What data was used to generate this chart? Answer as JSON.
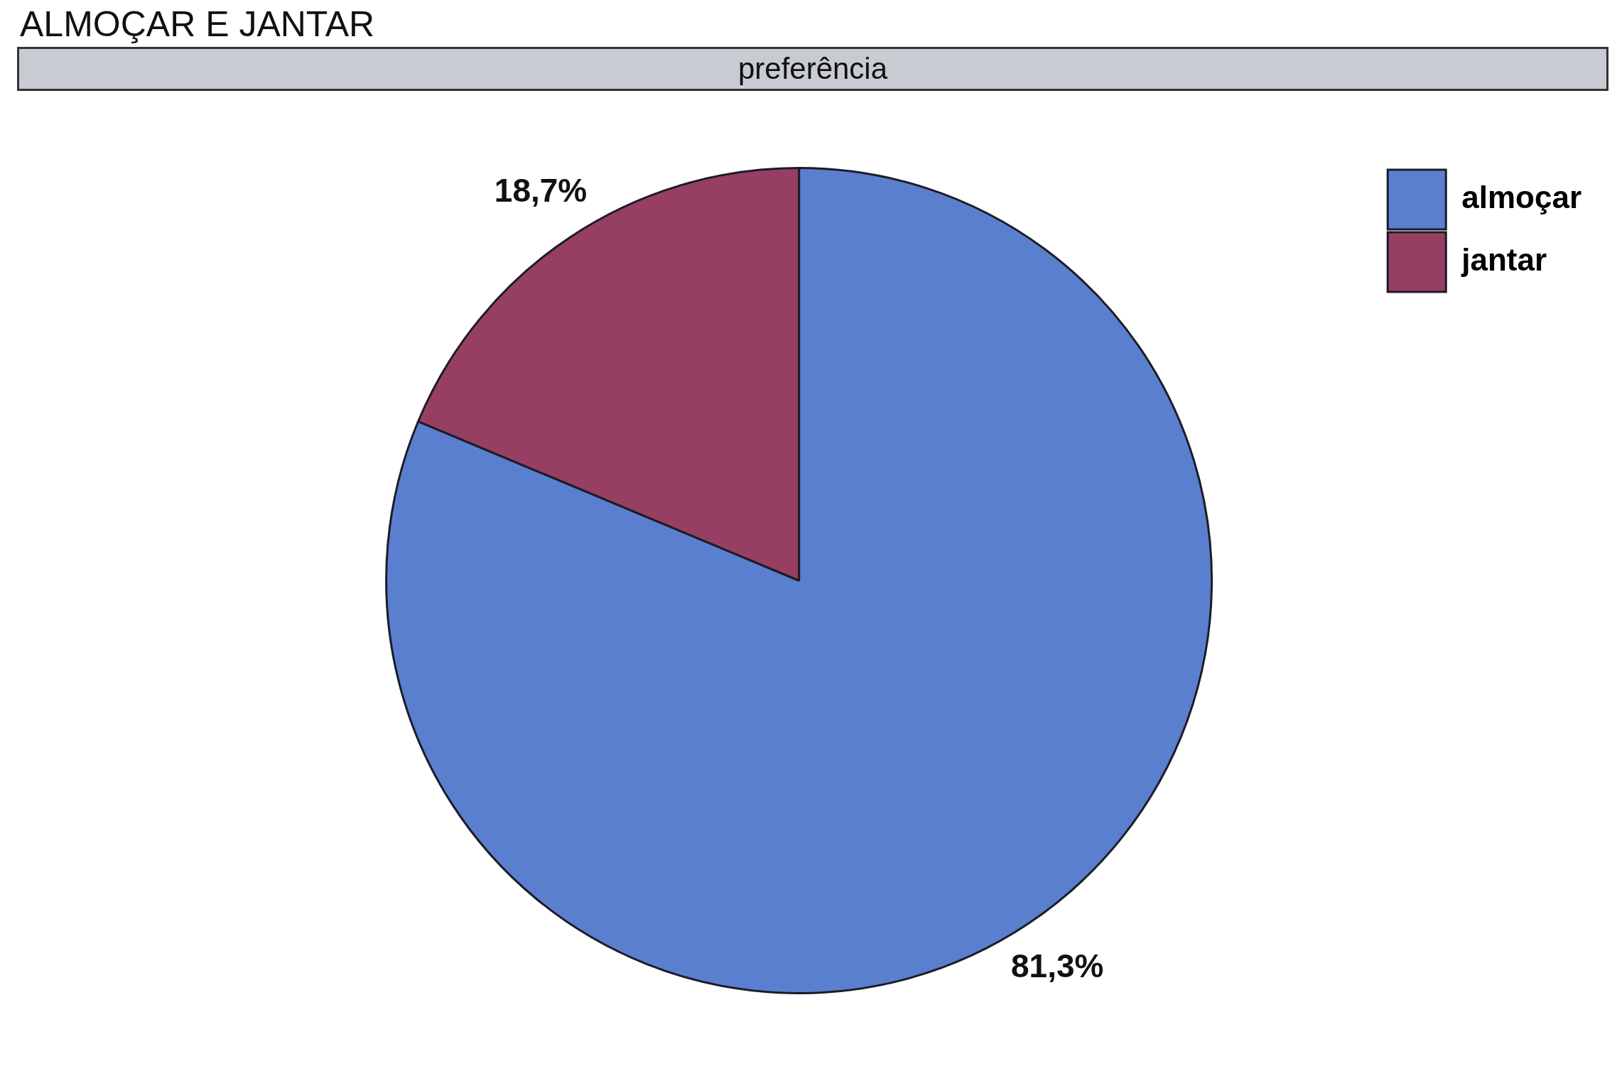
{
  "chart_data": {
    "type": "pie",
    "title": "ALMOÇAR E JANTAR",
    "subtitle": "preferência",
    "categories": [
      "almoçar",
      "jantar"
    ],
    "values": [
      81.3,
      18.7
    ],
    "colors": [
      "#5b7fcf",
      "#973f63"
    ],
    "value_labels": [
      "81,3%",
      "18,7%"
    ],
    "legend": "top right"
  }
}
